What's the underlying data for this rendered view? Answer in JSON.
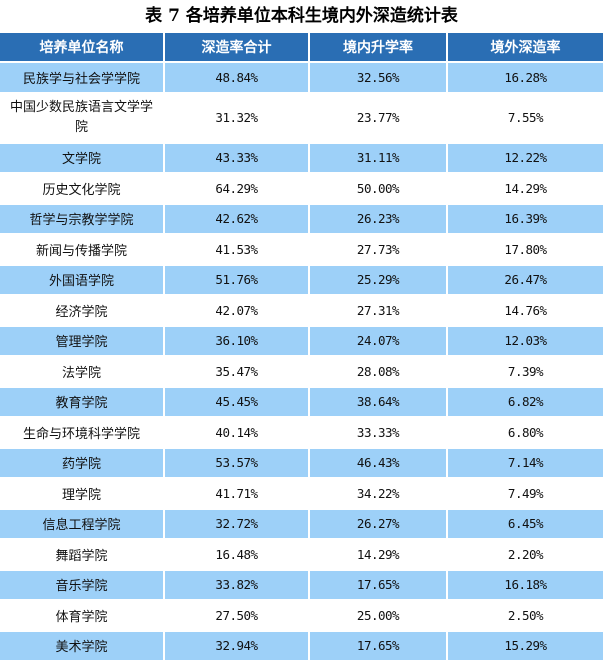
{
  "title": "表 7  各培养单位本科生境内外深造统计表",
  "table": {
    "headers": [
      "培养单位名称",
      "深造率合计",
      "境内升学率",
      "境外深造率"
    ],
    "rows": [
      {
        "name": "民族学与社会学学院",
        "total": "48.84%",
        "domestic": "32.56%",
        "abroad": "16.28%"
      },
      {
        "name": "中国少数民族语言文学学院",
        "total": "31.32%",
        "domestic": "23.77%",
        "abroad": "7.55%"
      },
      {
        "name": "文学院",
        "total": "43.33%",
        "domestic": "31.11%",
        "abroad": "12.22%"
      },
      {
        "name": "历史文化学院",
        "total": "64.29%",
        "domestic": "50.00%",
        "abroad": "14.29%"
      },
      {
        "name": "哲学与宗教学学院",
        "total": "42.62%",
        "domestic": "26.23%",
        "abroad": "16.39%"
      },
      {
        "name": "新闻与传播学院",
        "total": "41.53%",
        "domestic": "27.73%",
        "abroad": "17.80%"
      },
      {
        "name": "外国语学院",
        "total": "51.76%",
        "domestic": "25.29%",
        "abroad": "26.47%"
      },
      {
        "name": "经济学院",
        "total": "42.07%",
        "domestic": "27.31%",
        "abroad": "14.76%"
      },
      {
        "name": "管理学院",
        "total": "36.10%",
        "domestic": "24.07%",
        "abroad": "12.03%"
      },
      {
        "name": "法学院",
        "total": "35.47%",
        "domestic": "28.08%",
        "abroad": "7.39%"
      },
      {
        "name": "教育学院",
        "total": "45.45%",
        "domestic": "38.64%",
        "abroad": "6.82%"
      },
      {
        "name": "生命与环境科学学院",
        "total": "40.14%",
        "domestic": "33.33%",
        "abroad": "6.80%"
      },
      {
        "name": "药学院",
        "total": "53.57%",
        "domestic": "46.43%",
        "abroad": "7.14%"
      },
      {
        "name": "理学院",
        "total": "41.71%",
        "domestic": "34.22%",
        "abroad": "7.49%"
      },
      {
        "name": "信息工程学院",
        "total": "32.72%",
        "domestic": "26.27%",
        "abroad": "6.45%"
      },
      {
        "name": "舞蹈学院",
        "total": "16.48%",
        "domestic": "14.29%",
        "abroad": "2.20%"
      },
      {
        "name": "音乐学院",
        "total": "33.82%",
        "domestic": "17.65%",
        "abroad": "16.18%"
      },
      {
        "name": "体育学院",
        "total": "27.50%",
        "domestic": "25.00%",
        "abroad": "2.50%"
      },
      {
        "name": "美术学院",
        "total": "32.94%",
        "domestic": "17.65%",
        "abroad": "15.29%"
      }
    ]
  },
  "colors": {
    "header_bg": "#2a6eb4",
    "header_text": "#ffffff",
    "stripe_blue": "#9dd0f8",
    "stripe_white": "#ffffff"
  }
}
